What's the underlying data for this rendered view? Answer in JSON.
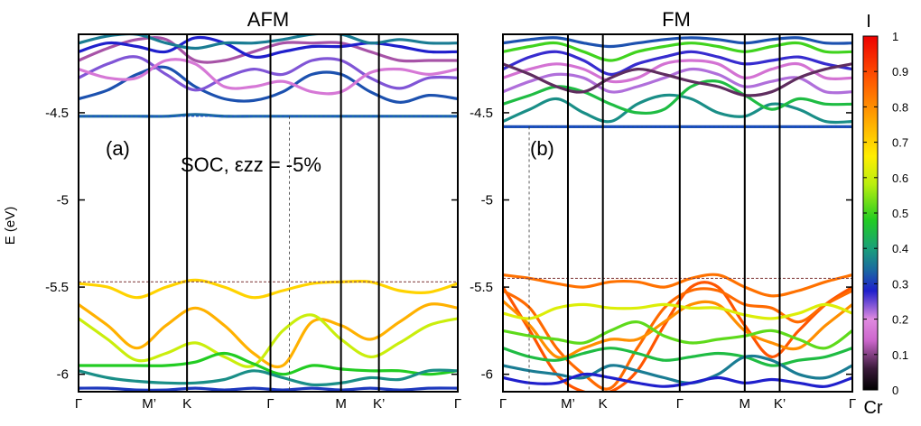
{
  "chart_data": {
    "type": "band-structure",
    "ylabel": "E (eV)",
    "ylim": [
      -6.1,
      -4.05
    ],
    "yticks": [
      {
        "value": -4.5,
        "label": "-4.5"
      },
      {
        "value": -5.0,
        "label": "-5"
      },
      {
        "value": -5.5,
        "label": "-5.5"
      },
      {
        "value": -6.0,
        "label": "-6"
      }
    ],
    "colorbar": {
      "title_top": "I",
      "title_bottom": "Cr",
      "range": [
        0,
        1
      ],
      "ticks": [
        "0",
        "0.1",
        "0.2",
        "0.3",
        "0.4",
        "0.5",
        "0.6",
        "0.7",
        "0.8",
        "0.9",
        "1"
      ],
      "colors": [
        "#000000",
        "#3a1a3a",
        "#cc66cc",
        "#e08ae0",
        "#1f1fcc",
        "#1a6aa0",
        "#1aa07a",
        "#22cc22",
        "#b8ee10",
        "#ffee00",
        "#ffaa00",
        "#ff5500",
        "#ee0000"
      ],
      "color_stops": [
        0,
        0.06,
        0.14,
        0.2,
        0.28,
        0.34,
        0.4,
        0.48,
        0.58,
        0.66,
        0.76,
        0.88,
        1
      ]
    },
    "panels": [
      {
        "title": "AFM",
        "label": "(a)",
        "annotation": "SOC, εzz = -5%",
        "kpath": [
          "Γ",
          "M’",
          "K",
          "Γ",
          "M",
          "K’",
          "Γ"
        ],
        "kpos": [
          0,
          0.186,
          0.286,
          0.506,
          0.692,
          0.792,
          1.0
        ],
        "vbm_level": -5.47,
        "cbm_level": -4.52,
        "dashed_k": 0.556,
        "bands": [
          {
            "w": 0.7,
            "e": [
              -5.48,
              -5.5,
              -5.56,
              -5.5,
              -5.46,
              -5.5,
              -5.56,
              -5.52,
              -5.48,
              -5.47,
              -5.47,
              -5.52,
              -5.53,
              -5.48
            ]
          },
          {
            "w": 0.75,
            "e": [
              -5.6,
              -5.72,
              -5.85,
              -5.72,
              -5.62,
              -5.72,
              -5.88,
              -5.95,
              -5.7,
              -5.72,
              -5.8,
              -5.7,
              -5.6,
              -5.62
            ]
          },
          {
            "w": 0.6,
            "e": [
              -5.68,
              -5.8,
              -5.92,
              -5.88,
              -5.82,
              -5.9,
              -5.95,
              -5.75,
              -5.66,
              -5.8,
              -5.9,
              -5.82,
              -5.72,
              -5.68
            ]
          },
          {
            "w": 0.48,
            "e": [
              -5.95,
              -5.95,
              -5.95,
              -5.95,
              -5.93,
              -5.88,
              -5.94,
              -6.0,
              -5.95,
              -5.97,
              -5.98,
              -5.98,
              -6.0,
              -5.98
            ]
          },
          {
            "w": 0.38,
            "e": [
              -5.98,
              -6.02,
              -6.04,
              -6.05,
              -6.05,
              -6.03,
              -5.98,
              -6.02,
              -6.06,
              -6.05,
              -6.02,
              -6.03,
              -5.98,
              -5.98
            ]
          },
          {
            "w": 0.3,
            "e": [
              -6.08,
              -6.08,
              -6.09,
              -6.09,
              -6.08,
              -6.09,
              -6.08,
              -6.09,
              -6.08,
              -6.09,
              -6.08,
              -6.09,
              -6.08,
              -6.08
            ]
          },
          {
            "w": 0.34,
            "e": [
              -4.52,
              -4.52,
              -4.52,
              -4.52,
              -4.51,
              -4.52,
              -4.52,
              -4.52,
              -4.52,
              -4.52,
              -4.52,
              -4.52,
              -4.52,
              -4.52
            ]
          },
          {
            "w": 0.32,
            "e": [
              -4.42,
              -4.37,
              -4.28,
              -4.24,
              -4.35,
              -4.42,
              -4.43,
              -4.38,
              -4.28,
              -4.28,
              -4.38,
              -4.44,
              -4.4,
              -4.42
            ]
          },
          {
            "w": 0.24,
            "e": [
              -4.3,
              -4.22,
              -4.18,
              -4.28,
              -4.37,
              -4.3,
              -4.25,
              -4.28,
              -4.2,
              -4.2,
              -4.3,
              -4.36,
              -4.3,
              -4.3
            ]
          },
          {
            "w": 0.17,
            "e": [
              -4.25,
              -4.3,
              -4.3,
              -4.2,
              -4.22,
              -4.35,
              -4.35,
              -4.32,
              -4.38,
              -4.38,
              -4.27,
              -4.25,
              -4.28,
              -4.25
            ]
          },
          {
            "w": 0.12,
            "e": [
              -4.2,
              -4.13,
              -4.08,
              -4.08,
              -4.2,
              -4.2,
              -4.15,
              -4.1,
              -4.1,
              -4.1,
              -4.15,
              -4.2,
              -4.2,
              -4.2
            ]
          },
          {
            "w": 0.28,
            "e": [
              -4.15,
              -4.1,
              -4.12,
              -4.15,
              -4.07,
              -4.1,
              -4.18,
              -4.15,
              -4.12,
              -4.12,
              -4.1,
              -4.12,
              -4.15,
              -4.15
            ]
          },
          {
            "w": 0.36,
            "e": [
              -4.1,
              -4.06,
              -4.05,
              -4.1,
              -4.13,
              -4.1,
              -4.1,
              -4.08,
              -4.05,
              -4.05,
              -4.1,
              -4.08,
              -4.1,
              -4.1
            ]
          }
        ]
      },
      {
        "title": "FM",
        "label": "(b)",
        "kpath": [
          "Γ",
          "M’",
          "K",
          "Γ",
          "M",
          "K’",
          "Γ"
        ],
        "kpos": [
          0,
          0.186,
          0.286,
          0.506,
          0.692,
          0.792,
          1.0
        ],
        "vbm_level": -5.45,
        "cbm_level": -4.58,
        "dashed_k": 0.075,
        "bands": [
          {
            "w": 0.84,
            "e": [
              -5.43,
              -5.45,
              -5.48,
              -5.5,
              -5.47,
              -5.47,
              -5.5,
              -5.45,
              -5.43,
              -5.5,
              -5.55,
              -5.52,
              -5.47,
              -5.43
            ]
          },
          {
            "w": 0.88,
            "e": [
              -5.5,
              -5.75,
              -6.0,
              -6.1,
              -6.1,
              -5.98,
              -5.72,
              -5.5,
              -5.5,
              -5.72,
              -5.9,
              -5.75,
              -5.6,
              -5.5
            ]
          },
          {
            "w": 0.85,
            "e": [
              -5.52,
              -5.62,
              -5.85,
              -6.0,
              -6.08,
              -5.85,
              -5.62,
              -5.52,
              -5.52,
              -5.6,
              -5.62,
              -5.7,
              -5.6,
              -5.52
            ]
          },
          {
            "w": 0.8,
            "e": [
              -5.58,
              -5.72,
              -5.9,
              -5.85,
              -5.8,
              -5.8,
              -5.7,
              -5.6,
              -5.6,
              -5.75,
              -5.82,
              -5.85,
              -5.72,
              -5.6
            ]
          },
          {
            "w": 0.62,
            "e": [
              -5.65,
              -5.68,
              -5.62,
              -5.6,
              -5.62,
              -5.62,
              -5.6,
              -5.62,
              -5.62,
              -5.66,
              -5.68,
              -5.65,
              -5.6,
              -5.65
            ]
          },
          {
            "w": 0.52,
            "e": [
              -5.75,
              -5.78,
              -5.8,
              -5.82,
              -5.75,
              -5.7,
              -5.78,
              -5.82,
              -5.8,
              -5.78,
              -5.75,
              -5.8,
              -5.85,
              -5.75
            ]
          },
          {
            "w": 0.45,
            "e": [
              -5.85,
              -5.9,
              -5.92,
              -5.88,
              -5.85,
              -5.88,
              -5.92,
              -5.9,
              -5.88,
              -5.9,
              -5.95,
              -5.92,
              -5.9,
              -5.85
            ]
          },
          {
            "w": 0.36,
            "e": [
              -5.95,
              -5.98,
              -6.0,
              -6.02,
              -5.95,
              -5.98,
              -6.02,
              -6.05,
              -6.0,
              -5.9,
              -5.92,
              -6.0,
              -6.02,
              -5.95
            ]
          },
          {
            "w": 0.28,
            "e": [
              -6.02,
              -6.05,
              -6.05,
              -6.0,
              -6.02,
              -6.05,
              -6.07,
              -6.05,
              -6.02,
              -6.05,
              -6.03,
              -6.05,
              -6.07,
              -6.02
            ]
          },
          {
            "w": 0.32,
            "e": [
              -4.58,
              -4.58,
              -4.58,
              -4.58,
              -4.58,
              -4.58,
              -4.58,
              -4.58,
              -4.58,
              -4.58,
              -4.58,
              -4.58,
              -4.58,
              -4.58
            ]
          },
          {
            "w": 0.38,
            "e": [
              -4.55,
              -4.48,
              -4.42,
              -4.5,
              -4.55,
              -4.45,
              -4.4,
              -4.42,
              -4.5,
              -4.52,
              -4.45,
              -4.48,
              -4.55,
              -4.55
            ]
          },
          {
            "w": 0.45,
            "e": [
              -4.45,
              -4.4,
              -4.35,
              -4.38,
              -4.45,
              -4.5,
              -4.48,
              -4.35,
              -4.32,
              -4.4,
              -4.48,
              -4.42,
              -4.45,
              -4.45
            ]
          },
          {
            "w": 0.22,
            "e": [
              -4.38,
              -4.32,
              -4.28,
              -4.3,
              -4.38,
              -4.35,
              -4.3,
              -4.25,
              -4.28,
              -4.35,
              -4.32,
              -4.3,
              -4.38,
              -4.38
            ]
          },
          {
            "w": 0.16,
            "e": [
              -4.3,
              -4.25,
              -4.22,
              -4.25,
              -4.32,
              -4.3,
              -4.22,
              -4.2,
              -4.22,
              -4.3,
              -4.25,
              -4.22,
              -4.3,
              -4.3
            ]
          },
          {
            "w": 0.27,
            "e": [
              -4.25,
              -4.18,
              -4.15,
              -4.2,
              -4.28,
              -4.22,
              -4.18,
              -4.15,
              -4.18,
              -4.22,
              -4.2,
              -4.18,
              -4.22,
              -4.25
            ]
          },
          {
            "w": 0.08,
            "e": [
              -4.22,
              -4.28,
              -4.35,
              -4.38,
              -4.3,
              -4.25,
              -4.28,
              -4.32,
              -4.35,
              -4.4,
              -4.38,
              -4.3,
              -4.25,
              -4.22
            ]
          },
          {
            "w": 0.5,
            "e": [
              -4.15,
              -4.12,
              -4.1,
              -4.15,
              -4.2,
              -4.15,
              -4.12,
              -4.1,
              -4.12,
              -4.15,
              -4.12,
              -4.1,
              -4.15,
              -4.15
            ]
          },
          {
            "w": 0.32,
            "e": [
              -4.1,
              -4.08,
              -4.07,
              -4.1,
              -4.12,
              -4.1,
              -4.08,
              -4.07,
              -4.08,
              -4.1,
              -4.08,
              -4.07,
              -4.1,
              -4.1
            ]
          }
        ]
      }
    ]
  }
}
